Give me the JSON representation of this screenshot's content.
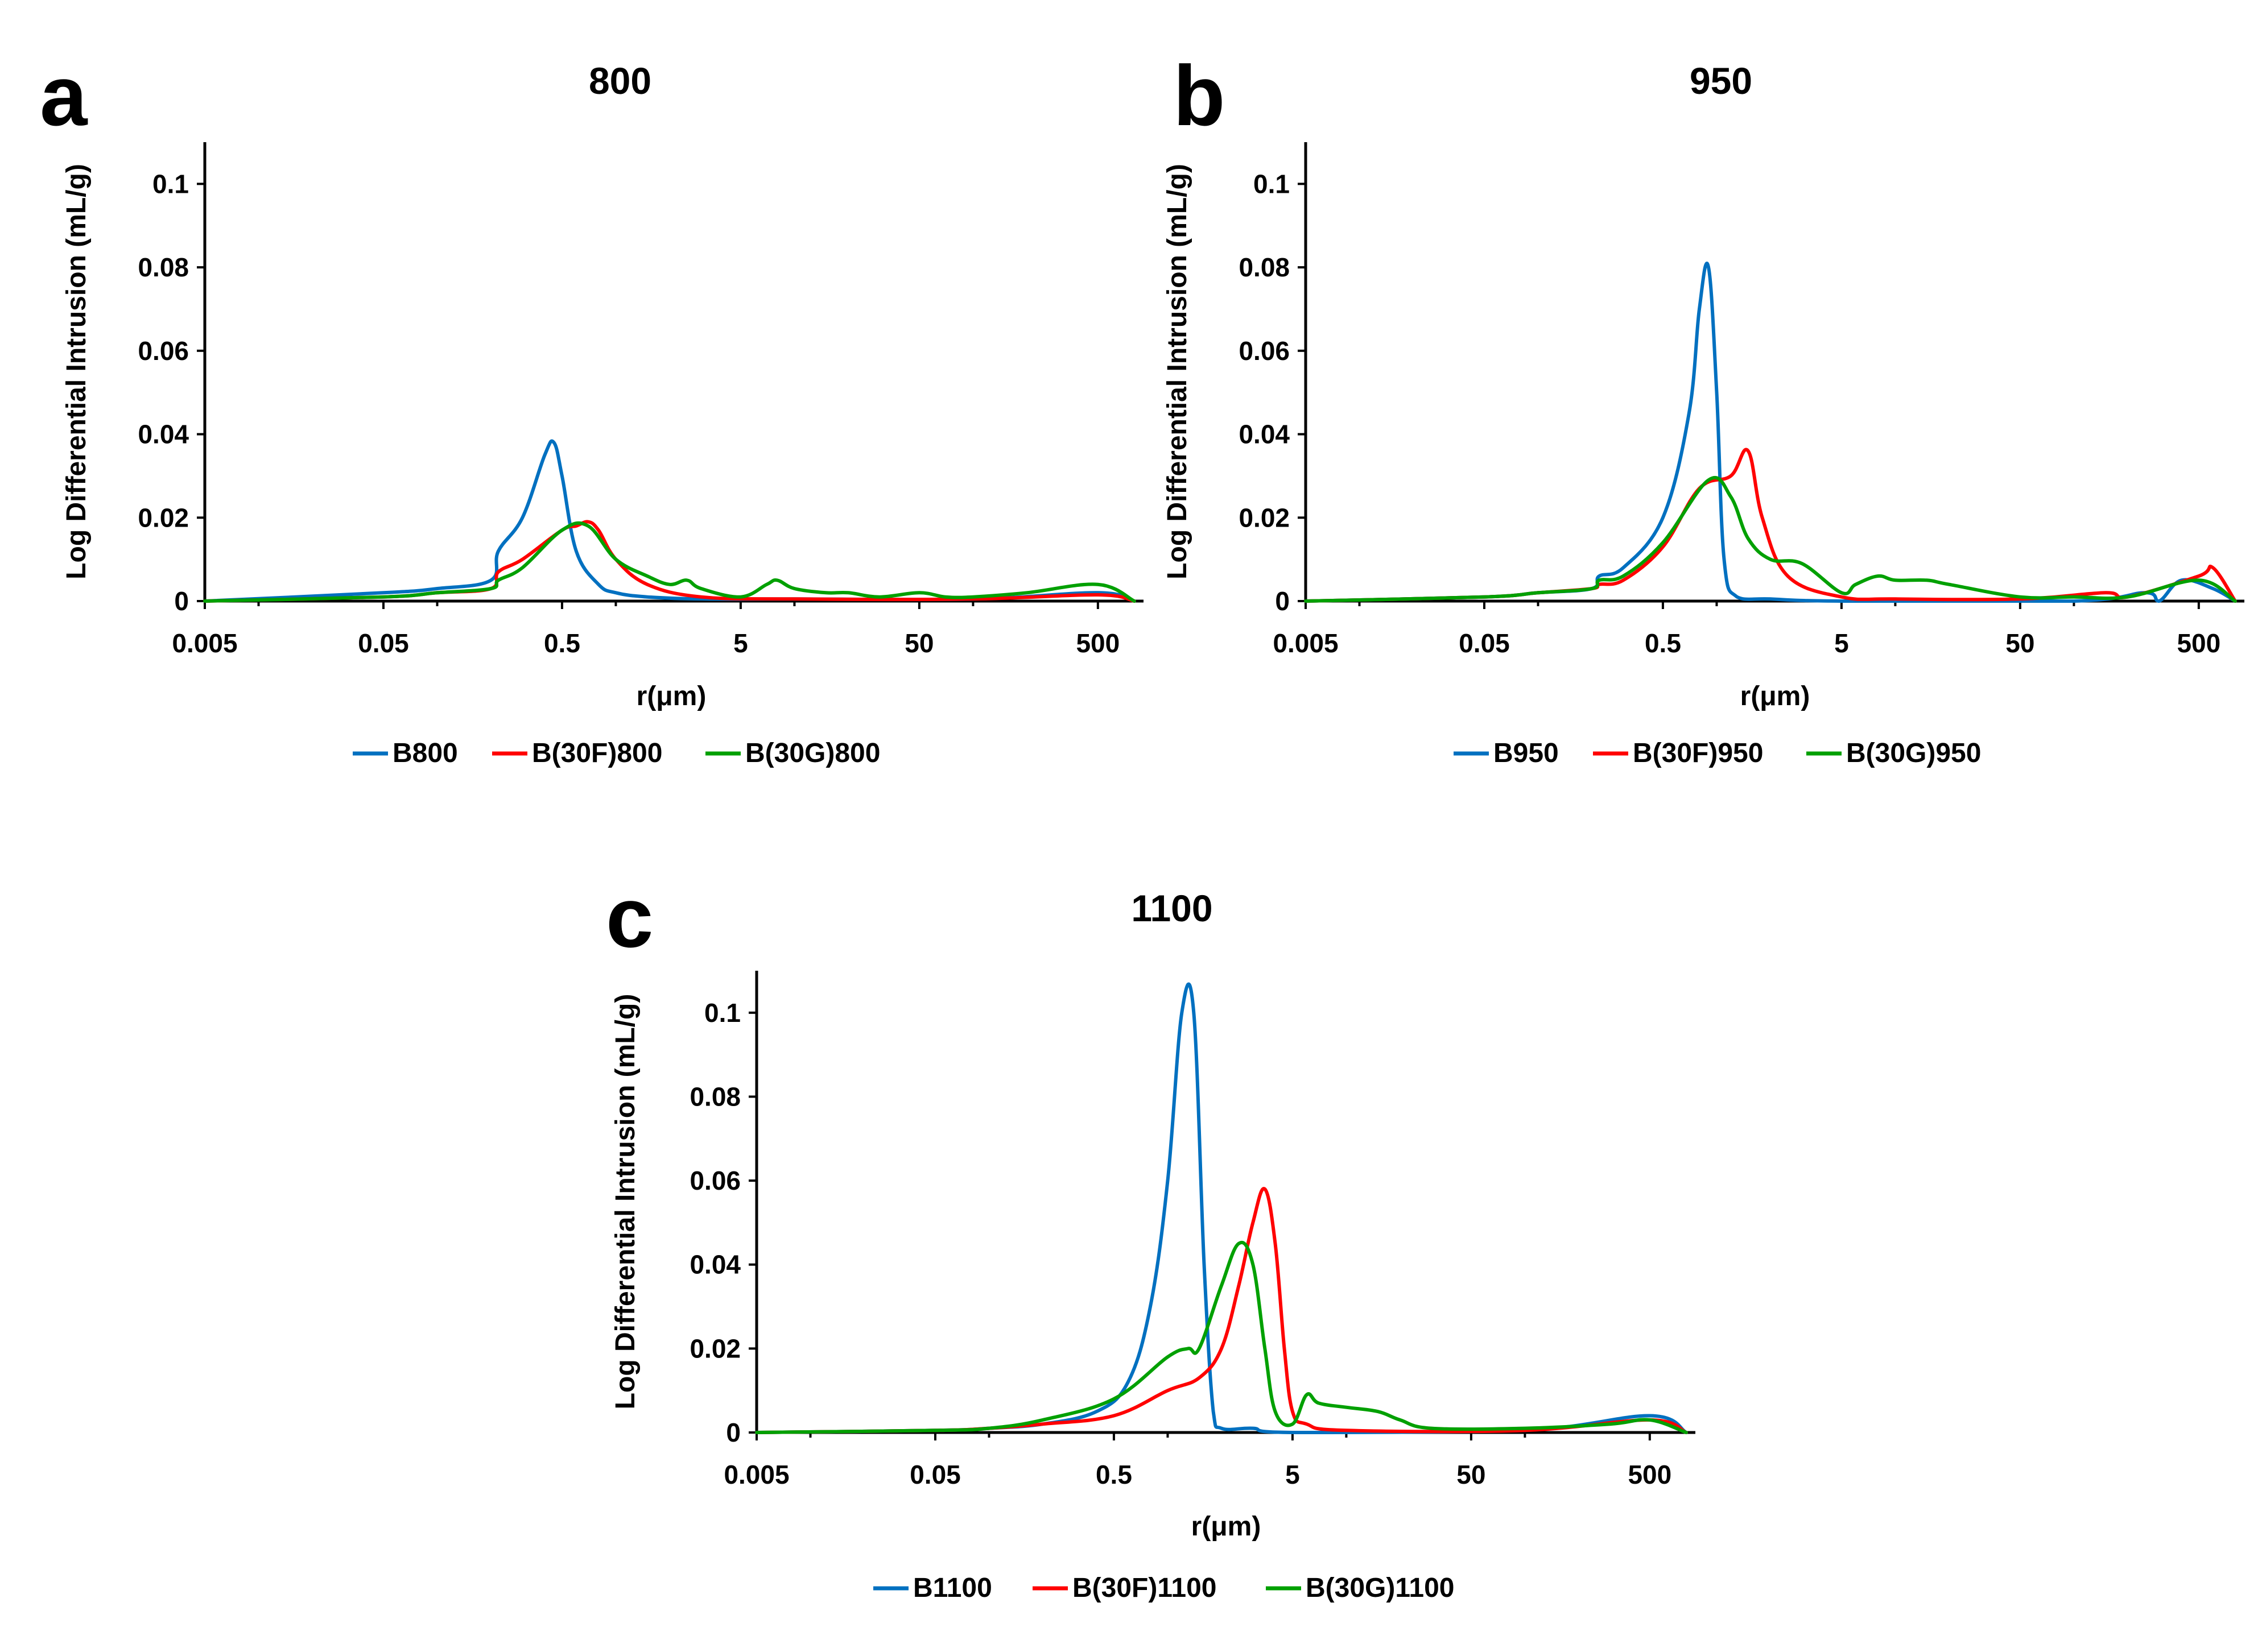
{
  "colors": {
    "blue": "#0070C0",
    "red": "#FF0000",
    "green": "#00A000"
  },
  "chart_data": [
    {
      "letter": "a",
      "title": "800",
      "type": "line",
      "xscale": "log",
      "xlabel": "r(μm)",
      "ylabel": "Log Differential Intrusion (mL/g)",
      "xlim": [
        0.005,
        900
      ],
      "ylim": [
        0,
        0.11
      ],
      "xticks": [
        0.005,
        0.05,
        0.5,
        5,
        50,
        500
      ],
      "xtick_labels": [
        "0.005",
        "0.05",
        "0.5",
        "5",
        "50",
        "500"
      ],
      "yticks": [
        0,
        0.02,
        0.04,
        0.06,
        0.08,
        0.1
      ],
      "ytick_labels": [
        "0",
        "0.02",
        "0.04",
        "0.06",
        "0.08",
        "0.1"
      ],
      "legend_position": "bottom",
      "series": [
        {
          "name": "B800",
          "color": "blue",
          "x": [
            0.005,
            0.05,
            0.1,
            0.2,
            0.22,
            0.3,
            0.4,
            0.45,
            0.5,
            0.6,
            0.8,
            1,
            1.5,
            3,
            10,
            100,
            500,
            800
          ],
          "y": [
            0,
            0.002,
            0.003,
            0.005,
            0.012,
            0.02,
            0.035,
            0.038,
            0.03,
            0.012,
            0.004,
            0.002,
            0.001,
            0.0005,
            0.0005,
            0.0005,
            0.002,
            0
          ]
        },
        {
          "name": "B(30F)800",
          "color": "red",
          "x": [
            0.005,
            0.05,
            0.1,
            0.2,
            0.22,
            0.3,
            0.5,
            0.6,
            0.7,
            0.8,
            1,
            1.5,
            3,
            10,
            100,
            500,
            800
          ],
          "y": [
            0,
            0.001,
            0.002,
            0.003,
            0.007,
            0.01,
            0.017,
            0.018,
            0.019,
            0.017,
            0.01,
            0.004,
            0.001,
            0.0005,
            0.0005,
            0.0015,
            0
          ]
        },
        {
          "name": "B(30G)800",
          "color": "green",
          "x": [
            0.005,
            0.05,
            0.1,
            0.2,
            0.22,
            0.3,
            0.5,
            0.7,
            1,
            1.5,
            2,
            2.5,
            3,
            5,
            7,
            8,
            10,
            15,
            20,
            30,
            50,
            70,
            100,
            200,
            500,
            800
          ],
          "y": [
            0,
            0.001,
            0.002,
            0.003,
            0.005,
            0.008,
            0.017,
            0.018,
            0.01,
            0.006,
            0.004,
            0.005,
            0.003,
            0.001,
            0.004,
            0.005,
            0.003,
            0.002,
            0.002,
            0.001,
            0.002,
            0.001,
            0.001,
            0.002,
            0.004,
            0
          ]
        }
      ]
    },
    {
      "letter": "b",
      "title": "950",
      "type": "line",
      "xscale": "log",
      "xlabel": "r(μm)",
      "ylabel": "Log Differential Intrusion (mL/g)",
      "xlim": [
        0.005,
        900
      ],
      "ylim": [
        0,
        0.11
      ],
      "xticks": [
        0.005,
        0.05,
        0.5,
        5,
        50,
        500
      ],
      "xtick_labels": [
        "0.005",
        "0.05",
        "0.5",
        "5",
        "50",
        "500"
      ],
      "yticks": [
        0,
        0.02,
        0.04,
        0.06,
        0.08,
        0.1
      ],
      "ytick_labels": [
        "0",
        "0.02",
        "0.04",
        "0.06",
        "0.08",
        "0.1"
      ],
      "legend_position": "bottom",
      "series": [
        {
          "name": "B950",
          "color": "blue",
          "x": [
            0.005,
            0.05,
            0.1,
            0.2,
            0.22,
            0.3,
            0.5,
            0.7,
            0.8,
            0.9,
            1.0,
            1.1,
            1.3,
            2,
            5,
            100,
            250,
            300,
            400,
            600,
            800
          ],
          "y": [
            0,
            0.001,
            0.002,
            0.003,
            0.006,
            0.008,
            0.02,
            0.045,
            0.07,
            0.08,
            0.05,
            0.01,
            0.001,
            0.0005,
            0,
            0,
            0.002,
            0,
            0.005,
            0.003,
            0
          ]
        },
        {
          "name": "B(30F)950",
          "color": "red",
          "x": [
            0.005,
            0.05,
            0.1,
            0.2,
            0.22,
            0.3,
            0.5,
            0.8,
            1.2,
            1.5,
            1.8,
            2.5,
            5,
            10,
            50,
            150,
            200,
            500,
            600,
            800
          ],
          "y": [
            0,
            0.001,
            0.002,
            0.003,
            0.004,
            0.005,
            0.013,
            0.027,
            0.03,
            0.036,
            0.02,
            0.006,
            0.001,
            0.0005,
            0.0005,
            0.002,
            0.001,
            0.006,
            0.008,
            0
          ]
        },
        {
          "name": "B(30G)950",
          "color": "green",
          "x": [
            0.005,
            0.05,
            0.1,
            0.2,
            0.22,
            0.3,
            0.5,
            0.9,
            1.2,
            1.5,
            2,
            3,
            5,
            6,
            8,
            10,
            15,
            20,
            50,
            100,
            200,
            500,
            800
          ],
          "y": [
            0,
            0.001,
            0.002,
            0.003,
            0.005,
            0.006,
            0.014,
            0.029,
            0.025,
            0.015,
            0.01,
            0.009,
            0.002,
            0.004,
            0.006,
            0.005,
            0.005,
            0.004,
            0.001,
            0.001,
            0.001,
            0.005,
            0
          ]
        }
      ]
    },
    {
      "letter": "c",
      "title": "1100",
      "type": "line",
      "xscale": "log",
      "xlabel": "r(μm)",
      "ylabel": "Log Differential Intrusion (mL/g)",
      "xlim": [
        0.005,
        900
      ],
      "ylim": [
        0,
        0.11
      ],
      "xticks": [
        0.005,
        0.05,
        0.5,
        5,
        50,
        500
      ],
      "xtick_labels": [
        "0.005",
        "0.05",
        "0.5",
        "5",
        "50",
        "500"
      ],
      "yticks": [
        0,
        0.02,
        0.04,
        0.06,
        0.08,
        0.1
      ],
      "ytick_labels": [
        "0",
        "0.02",
        "0.04",
        "0.06",
        "0.08",
        "0.1"
      ],
      "legend_position": "bottom",
      "series": [
        {
          "name": "B1100",
          "color": "blue",
          "x": [
            0.005,
            0.05,
            0.1,
            0.2,
            0.4,
            0.6,
            0.8,
            1.0,
            1.2,
            1.4,
            1.6,
            1.8,
            2.0,
            3,
            5,
            100,
            500,
            800
          ],
          "y": [
            0,
            0.0005,
            0.001,
            0.002,
            0.005,
            0.012,
            0.03,
            0.06,
            0.1,
            0.1,
            0.04,
            0.005,
            0.001,
            0.001,
            0,
            0.0005,
            0.004,
            0
          ]
        },
        {
          "name": "B(30F)1100",
          "color": "red",
          "x": [
            0.005,
            0.05,
            0.1,
            0.2,
            0.5,
            1.0,
            1.5,
            2,
            2.5,
            3,
            3.5,
            4,
            4.5,
            5,
            6,
            10,
            100,
            500,
            800
          ],
          "y": [
            0,
            0.0005,
            0.001,
            0.002,
            0.004,
            0.01,
            0.013,
            0.02,
            0.035,
            0.05,
            0.058,
            0.045,
            0.02,
            0.005,
            0.002,
            0.0005,
            0.0005,
            0.003,
            0
          ]
        },
        {
          "name": "B(30G)1100",
          "color": "green",
          "x": [
            0.005,
            0.05,
            0.1,
            0.2,
            0.5,
            1.0,
            1.3,
            1.5,
            2,
            2.5,
            3,
            3.5,
            4,
            5,
            6,
            7,
            10,
            15,
            20,
            30,
            100,
            300,
            500,
            800
          ],
          "y": [
            0,
            0.0005,
            0.001,
            0.003,
            0.008,
            0.018,
            0.02,
            0.02,
            0.035,
            0.045,
            0.04,
            0.02,
            0.005,
            0.002,
            0.009,
            0.007,
            0.006,
            0.005,
            0.003,
            0.001,
            0.001,
            0.002,
            0.003,
            0
          ]
        }
      ]
    }
  ]
}
